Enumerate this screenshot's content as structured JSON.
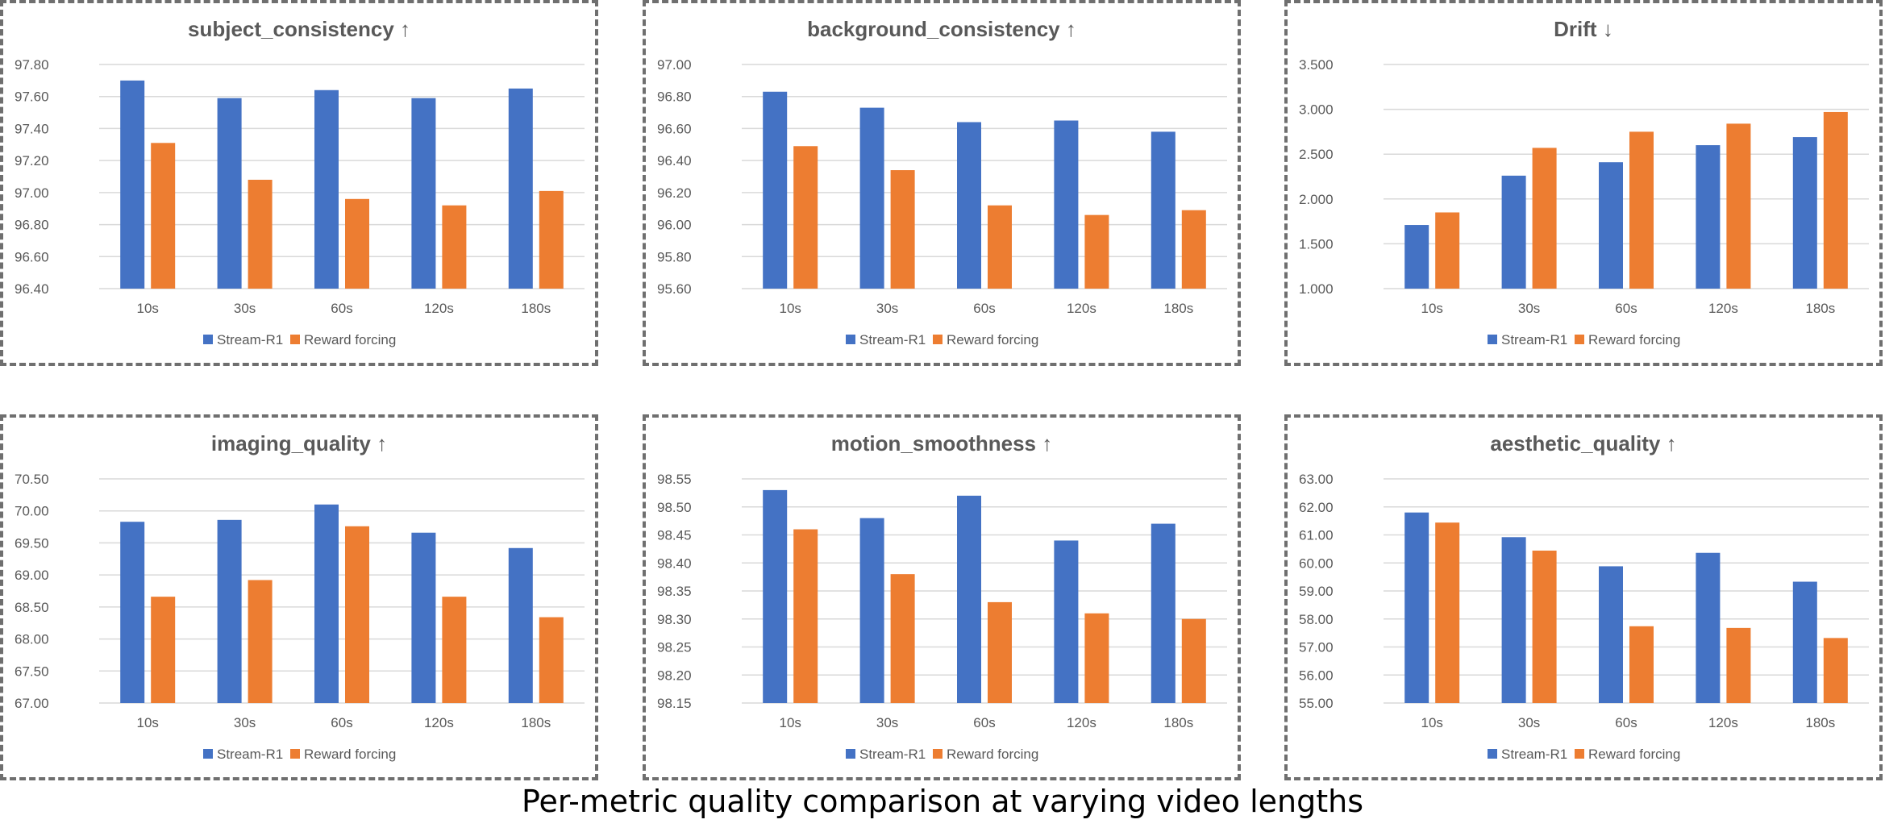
{
  "caption": "Per-metric quality comparison at varying video lengths",
  "legend": {
    "position": "bottom",
    "series": [
      "Stream-R1",
      "Reward forcing"
    ]
  },
  "colors": {
    "Stream-R1": "#4472C4",
    "Reward forcing": "#ED7D31",
    "grid": "#D9D9D9",
    "text": "#595959",
    "border": "#6F6F6F"
  },
  "chart_data": [
    {
      "type": "bar",
      "title": "subject_consistency ↑",
      "categories": [
        "10s",
        "30s",
        "60s",
        "120s",
        "180s"
      ],
      "ylim": [
        96.4,
        97.8
      ],
      "ystep": 0.2,
      "decimals": 2,
      "grid": true,
      "series": [
        {
          "name": "Stream-R1",
          "values": [
            97.7,
            97.59,
            97.64,
            97.59,
            97.65
          ]
        },
        {
          "name": "Reward forcing",
          "values": [
            97.31,
            97.08,
            96.96,
            96.92,
            97.01
          ]
        }
      ]
    },
    {
      "type": "bar",
      "title": "background_consistency ↑",
      "categories": [
        "10s",
        "30s",
        "60s",
        "120s",
        "180s"
      ],
      "ylim": [
        95.6,
        97.0
      ],
      "ystep": 0.2,
      "decimals": 2,
      "grid": true,
      "series": [
        {
          "name": "Stream-R1",
          "values": [
            96.83,
            96.73,
            96.64,
            96.65,
            96.58
          ]
        },
        {
          "name": "Reward forcing",
          "values": [
            96.49,
            96.34,
            96.12,
            96.06,
            96.09
          ]
        }
      ]
    },
    {
      "type": "bar",
      "title": "Drift ↓",
      "categories": [
        "10s",
        "30s",
        "60s",
        "120s",
        "180s"
      ],
      "ylim": [
        1.0,
        3.5
      ],
      "ystep": 0.5,
      "decimals": 3,
      "grid": true,
      "series": [
        {
          "name": "Stream-R1",
          "values": [
            1.71,
            2.26,
            2.41,
            2.6,
            2.69
          ]
        },
        {
          "name": "Reward forcing",
          "values": [
            1.85,
            2.57,
            2.75,
            2.84,
            2.97
          ]
        }
      ]
    },
    {
      "type": "bar",
      "title": "imaging_quality ↑",
      "categories": [
        "10s",
        "30s",
        "60s",
        "120s",
        "180s"
      ],
      "ylim": [
        67.0,
        70.5
      ],
      "ystep": 0.5,
      "decimals": 2,
      "grid": true,
      "series": [
        {
          "name": "Stream-R1",
          "values": [
            69.83,
            69.86,
            70.1,
            69.66,
            69.42
          ]
        },
        {
          "name": "Reward forcing",
          "values": [
            68.66,
            68.92,
            69.76,
            68.66,
            68.34
          ]
        }
      ]
    },
    {
      "type": "bar",
      "title": "motion_smoothness ↑",
      "categories": [
        "10s",
        "30s",
        "60s",
        "120s",
        "180s"
      ],
      "ylim": [
        98.15,
        98.55
      ],
      "ystep": 0.05,
      "decimals": 2,
      "grid": true,
      "series": [
        {
          "name": "Stream-R1",
          "values": [
            98.53,
            98.48,
            98.52,
            98.44,
            98.47
          ]
        },
        {
          "name": "Reward forcing",
          "values": [
            98.46,
            98.38,
            98.33,
            98.31,
            98.3
          ]
        }
      ]
    },
    {
      "type": "bar",
      "title": "aesthetic_quality ↑",
      "categories": [
        "10s",
        "30s",
        "60s",
        "120s",
        "180s"
      ],
      "ylim": [
        55.0,
        63.0
      ],
      "ystep": 1.0,
      "decimals": 2,
      "grid": true,
      "series": [
        {
          "name": "Stream-R1",
          "values": [
            61.8,
            60.92,
            59.88,
            60.36,
            59.33
          ]
        },
        {
          "name": "Reward forcing",
          "values": [
            61.44,
            60.44,
            57.74,
            57.68,
            57.32
          ]
        }
      ]
    }
  ]
}
